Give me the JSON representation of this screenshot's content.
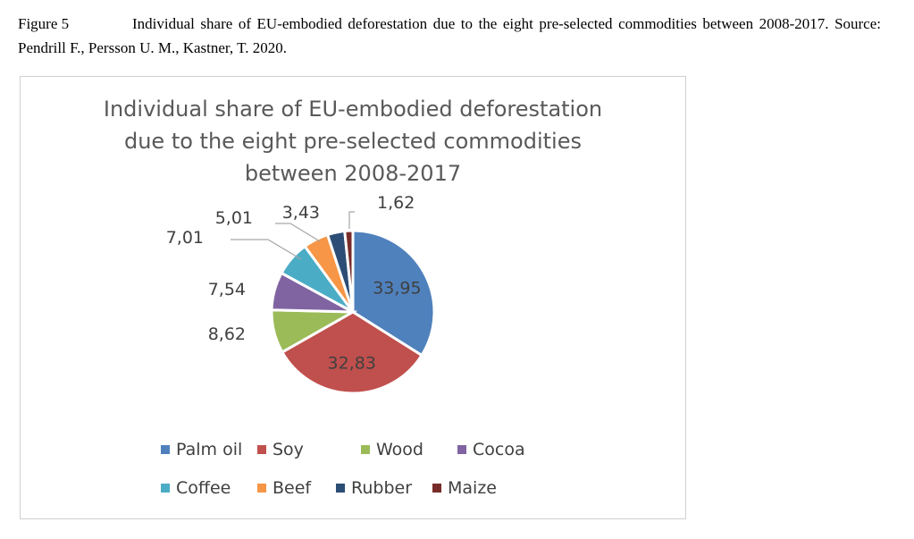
{
  "caption": {
    "figure_label": "Figure 5",
    "text": "Individual share of EU-embodied deforestation due to the eight pre-selected commodities between 2008-2017. Source: Pendrill F., Persson U. M., Kastner, T. 2020."
  },
  "chart_data": {
    "type": "pie",
    "title": "Individual share of EU-embodied deforestation due to the eight pre-selected commodities between 2008-2017",
    "title_lines": [
      "Individual share of EU-embodied deforestation",
      "due to the eight pre-selected commodities",
      "between 2008-2017"
    ],
    "categories": [
      "Palm oil",
      "Soy",
      "Wood",
      "Cocoa",
      "Coffee",
      "Beef",
      "Rubber",
      "Maize"
    ],
    "values": [
      33.95,
      32.83,
      8.62,
      7.54,
      7.01,
      5.01,
      3.43,
      1.62
    ],
    "labels": [
      "33,95",
      "32,83",
      "8,62",
      "7,54",
      "7,01",
      "5,01",
      "3,43",
      "1,62"
    ],
    "colors": [
      "#4f81bd",
      "#c0504d",
      "#9bbb59",
      "#8064a2",
      "#4bacc6",
      "#f79646",
      "#2c4d75",
      "#772c2a"
    ],
    "legend_position": "bottom"
  }
}
